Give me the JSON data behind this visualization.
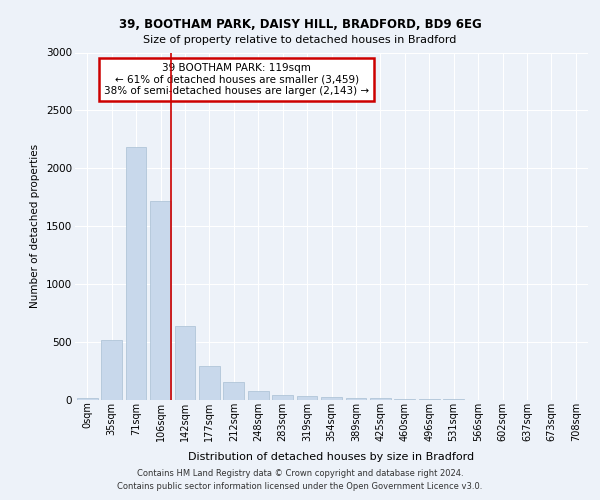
{
  "title_line1": "39, BOOTHAM PARK, DAISY HILL, BRADFORD, BD9 6EG",
  "title_line2": "Size of property relative to detached houses in Bradford",
  "xlabel": "Distribution of detached houses by size in Bradford",
  "ylabel": "Number of detached properties",
  "categories": [
    "0sqm",
    "35sqm",
    "71sqm",
    "106sqm",
    "142sqm",
    "177sqm",
    "212sqm",
    "248sqm",
    "283sqm",
    "319sqm",
    "354sqm",
    "389sqm",
    "425sqm",
    "460sqm",
    "496sqm",
    "531sqm",
    "566sqm",
    "602sqm",
    "637sqm",
    "673sqm",
    "708sqm"
  ],
  "values": [
    20,
    520,
    2180,
    1720,
    640,
    290,
    155,
    80,
    45,
    35,
    25,
    18,
    15,
    10,
    5,
    5,
    3,
    2,
    2,
    1,
    1
  ],
  "bar_color": "#c8d8eb",
  "bar_edge_color": "#a8bfd4",
  "annotation_text": "39 BOOTHAM PARK: 119sqm\n← 61% of detached houses are smaller (3,459)\n38% of semi-detached houses are larger (2,143) →",
  "annotation_box_edgecolor": "#cc0000",
  "ylim": [
    0,
    3000
  ],
  "yticks": [
    0,
    500,
    1000,
    1500,
    2000,
    2500,
    3000
  ],
  "footer_line1": "Contains HM Land Registry data © Crown copyright and database right 2024.",
  "footer_line2": "Contains public sector information licensed under the Open Government Licence v3.0.",
  "background_color": "#edf2f9",
  "grid_color": "#ffffff",
  "vline_color": "#cc0000",
  "vline_position": 3.42
}
